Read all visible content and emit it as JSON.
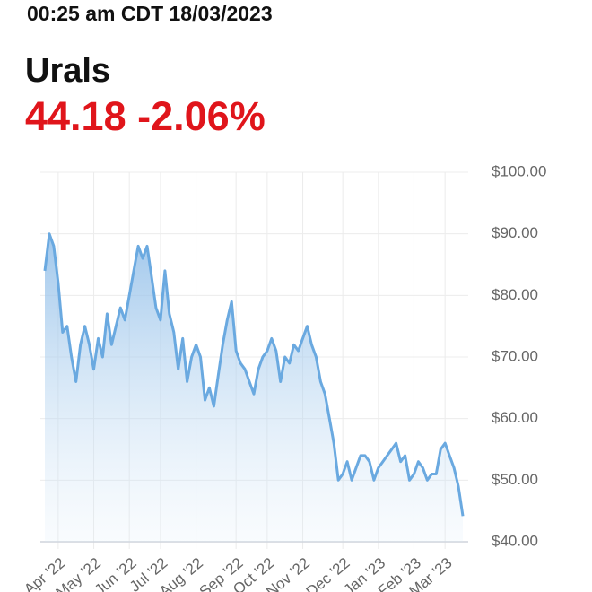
{
  "header": {
    "timestamp": "00:25 am CDT 18/03/2023",
    "name": "Urals",
    "price": "44.18",
    "change": "-2.06%"
  },
  "chart_data": {
    "type": "area",
    "color": "#6aa9e0",
    "grid": true,
    "values": [
      84,
      90,
      88,
      82,
      74,
      75,
      70,
      66,
      72,
      75,
      72,
      68,
      73,
      70,
      77,
      72,
      75,
      78,
      76,
      80,
      84,
      88,
      86,
      88,
      83,
      78,
      76,
      84,
      77,
      74,
      68,
      73,
      66,
      70,
      72,
      70,
      63,
      65,
      62,
      67,
      72,
      76,
      79,
      71,
      69,
      68,
      66,
      64,
      68,
      70,
      71,
      73,
      71,
      66,
      70,
      69,
      72,
      71,
      73,
      75,
      72,
      70,
      66,
      64,
      60,
      56,
      50,
      51,
      53,
      50,
      52,
      54,
      54,
      53,
      50,
      52,
      53,
      54,
      55,
      56,
      53,
      54,
      50,
      51,
      53,
      52,
      50,
      51,
      51,
      55,
      56,
      54,
      52,
      49,
      44.18
    ],
    "xlim": [
      0,
      94
    ],
    "xticks": [
      {
        "value": 3,
        "label": "Apr '22"
      },
      {
        "value": 11,
        "label": "May '22"
      },
      {
        "value": 19,
        "label": "Jun '22"
      },
      {
        "value": 26,
        "label": "Jul '22"
      },
      {
        "value": 34,
        "label": "Aug '22"
      },
      {
        "value": 43,
        "label": "Sep '22"
      },
      {
        "value": 50,
        "label": "Oct '22"
      },
      {
        "value": 58,
        "label": "Nov '22"
      },
      {
        "value": 67,
        "label": "Dec '22"
      },
      {
        "value": 75,
        "label": "Jan '23"
      },
      {
        "value": 83,
        "label": "Feb '23"
      },
      {
        "value": 90,
        "label": "Mar '23"
      }
    ],
    "ylim": [
      40,
      100
    ],
    "yticks": [
      {
        "value": 40,
        "label": "$40.00"
      },
      {
        "value": 50,
        "label": "$50.00"
      },
      {
        "value": 60,
        "label": "$60.00"
      },
      {
        "value": 70,
        "label": "$70.00"
      },
      {
        "value": 80,
        "label": "$80.00"
      },
      {
        "value": 90,
        "label": "$90.00"
      },
      {
        "value": 100,
        "label": "$100.00"
      }
    ]
  }
}
